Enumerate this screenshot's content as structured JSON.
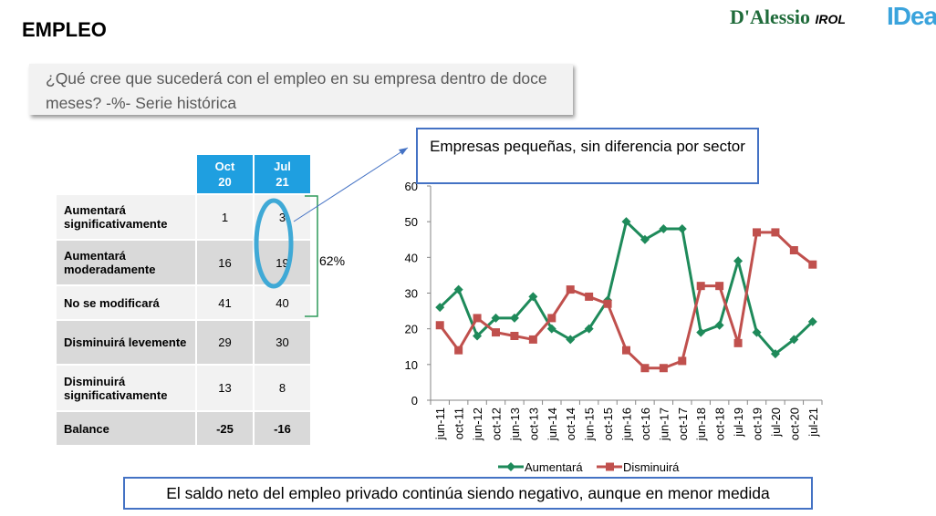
{
  "header": {
    "title": "EMPLEO",
    "logo_dalessio": "D'Alessio",
    "logo_irol": "IROL",
    "logo_idea": "IDea"
  },
  "question": "¿Qué cree que sucederá con el empleo en su empresa dentro de doce meses? -%- Serie histórica",
  "table": {
    "columns": [
      "Oct 20",
      "Jul 21"
    ],
    "columns_lines": [
      [
        "Oct",
        "20"
      ],
      [
        "Jul",
        "21"
      ]
    ],
    "rows": [
      {
        "label": "Aumentará significativamente",
        "values": [
          "1",
          "3"
        ]
      },
      {
        "label": "Aumentará moderadamente",
        "values": [
          "16",
          "19"
        ]
      },
      {
        "label": "No se modificará",
        "values": [
          "41",
          "40"
        ]
      },
      {
        "label": "Disminuirá levemente",
        "values": [
          "29",
          "30"
        ]
      },
      {
        "label": "Disminuirá significativamente",
        "values": [
          "13",
          "8"
        ]
      },
      {
        "label": "Balance",
        "values": [
          "-25",
          "-16"
        ]
      }
    ],
    "bracket_label": "62%"
  },
  "callout": "Empresas pequeñas, sin diferencia por sector",
  "conclusion": "El saldo neto del empleo privado continúa siendo negativo, aunque en menor medida",
  "chart_data": {
    "type": "line",
    "categories": [
      "jun-11",
      "oct-11",
      "jun-12",
      "oct-12",
      "jun-13",
      "oct-13",
      "jun-14",
      "oct-14",
      "jun-15",
      "oct-15",
      "jun-16",
      "oct-16",
      "jun-17",
      "oct-17",
      "jun-18",
      "oct-18",
      "jul-19",
      "oct-19",
      "jul-20",
      "oct-20",
      "jul-21"
    ],
    "series": [
      {
        "name": "Aumentará",
        "color": "#1e8a5a",
        "marker": "diamond",
        "values": [
          26,
          31,
          18,
          23,
          23,
          29,
          20,
          17,
          20,
          28,
          50,
          45,
          48,
          48,
          19,
          21,
          39,
          19,
          13,
          17,
          22
        ]
      },
      {
        "name": "Disminuirá",
        "color": "#c0504d",
        "marker": "square",
        "values": [
          21,
          14,
          23,
          19,
          18,
          17,
          23,
          31,
          29,
          27,
          14,
          9,
          9,
          11,
          32,
          32,
          16,
          47,
          47,
          42,
          38
        ]
      }
    ],
    "ylim": [
      0,
      60
    ],
    "yticks": [
      0,
      10,
      20,
      30,
      40,
      50,
      60
    ],
    "legend": "bottom",
    "grid": false
  }
}
